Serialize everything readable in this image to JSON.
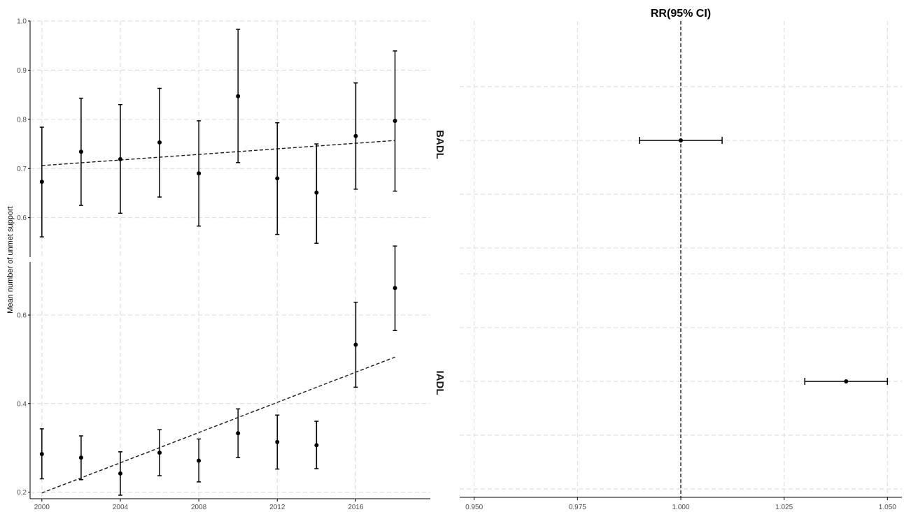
{
  "chart_data": [
    {
      "type": "scatter",
      "ylabel": "Mean number of unmet support",
      "xlabel": "",
      "x_ticks": [
        "2000",
        "2004",
        "2008",
        "2012",
        "2016"
      ],
      "xlim": [
        1999.4,
        2019.8
      ],
      "panels": [
        {
          "strip": "BADL",
          "ylim": [
            0.52,
            1.0
          ],
          "y_ticks": [
            "0.6",
            "0.7",
            "0.8",
            "0.9",
            "1.0"
          ],
          "y_tick_values": [
            0.6,
            0.7,
            0.8,
            0.9,
            1.0
          ],
          "points": [
            {
              "x": 2000,
              "y": 0.673,
              "lo": 0.561,
              "hi": 0.784
            },
            {
              "x": 2002,
              "y": 0.734,
              "lo": 0.625,
              "hi": 0.843
            },
            {
              "x": 2004,
              "y": 0.719,
              "lo": 0.609,
              "hi": 0.83
            },
            {
              "x": 2006,
              "y": 0.753,
              "lo": 0.642,
              "hi": 0.863
            },
            {
              "x": 2008,
              "y": 0.69,
              "lo": 0.583,
              "hi": 0.797
            },
            {
              "x": 2010,
              "y": 0.847,
              "lo": 0.712,
              "hi": 0.983
            },
            {
              "x": 2012,
              "y": 0.68,
              "lo": 0.566,
              "hi": 0.793
            },
            {
              "x": 2014,
              "y": 0.651,
              "lo": 0.548,
              "hi": 0.75
            },
            {
              "x": 2016,
              "y": 0.766,
              "lo": 0.658,
              "hi": 0.874
            },
            {
              "x": 2018,
              "y": 0.797,
              "lo": 0.654,
              "hi": 0.939
            }
          ],
          "trend": {
            "x": [
              2000,
              2018
            ],
            "y": [
              0.706,
              0.757
            ]
          }
        },
        {
          "strip": "IADL",
          "ylim": [
            0.185,
            0.72
          ],
          "y_ticks": [
            "0.2",
            "0.4",
            "0.6"
          ],
          "y_tick_values": [
            0.2,
            0.4,
            0.6
          ],
          "points": [
            {
              "x": 2000,
              "y": 0.286,
              "lo": 0.23,
              "hi": 0.343
            },
            {
              "x": 2002,
              "y": 0.278,
              "lo": 0.228,
              "hi": 0.327
            },
            {
              "x": 2004,
              "y": 0.242,
              "lo": 0.193,
              "hi": 0.291
            },
            {
              "x": 2006,
              "y": 0.289,
              "lo": 0.237,
              "hi": 0.341
            },
            {
              "x": 2008,
              "y": 0.271,
              "lo": 0.223,
              "hi": 0.32
            },
            {
              "x": 2010,
              "y": 0.333,
              "lo": 0.278,
              "hi": 0.388
            },
            {
              "x": 2012,
              "y": 0.313,
              "lo": 0.252,
              "hi": 0.374
            },
            {
              "x": 2014,
              "y": 0.306,
              "lo": 0.253,
              "hi": 0.36
            },
            {
              "x": 2016,
              "y": 0.533,
              "lo": 0.437,
              "hi": 0.629
            },
            {
              "x": 2018,
              "y": 0.661,
              "lo": 0.565,
              "hi": 0.756
            }
          ],
          "trend": {
            "x": [
              2000,
              2018
            ],
            "y": [
              0.198,
              0.505
            ]
          }
        }
      ],
      "colors": {
        "points": "#000000",
        "grid": "#d9d9d9"
      }
    },
    {
      "type": "scatter",
      "title": "RR(95% CI)",
      "xlim": [
        0.9465,
        1.0535
      ],
      "x_ticks": [
        "0.950",
        "0.975",
        "1.000",
        "1.025",
        "1.050"
      ],
      "x_tick_values": [
        0.95,
        0.975,
        1.0,
        1.025,
        1.05
      ],
      "reference_line": 1.0,
      "estimates": [
        {
          "label": "BADL",
          "rr": 1.0,
          "lo": 0.99,
          "hi": 1.01
        },
        {
          "label": "IADL",
          "rr": 1.04,
          "lo": 1.03,
          "hi": 1.05
        }
      ]
    }
  ]
}
